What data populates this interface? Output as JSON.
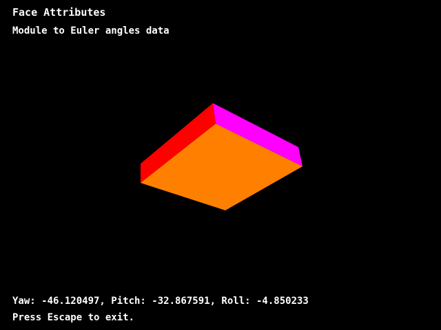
{
  "window": {
    "title": "Face Attributes",
    "subtitle": "Module to Euler angles data"
  },
  "status": {
    "angles": "Yaw: -46.120497, Pitch: -32.867591, Roll: -4.850233",
    "instruction": "Press Escape to exit."
  },
  "euler": {
    "yaw": -46.120497,
    "pitch": -32.867591,
    "roll": -4.850233
  },
  "scene": {
    "background_color": "#000000",
    "object": "box",
    "faces": [
      {
        "name": "front",
        "color": "#ff8000"
      },
      {
        "name": "left",
        "color": "#ff0000"
      },
      {
        "name": "right",
        "color": "#ff00ff"
      }
    ]
  }
}
